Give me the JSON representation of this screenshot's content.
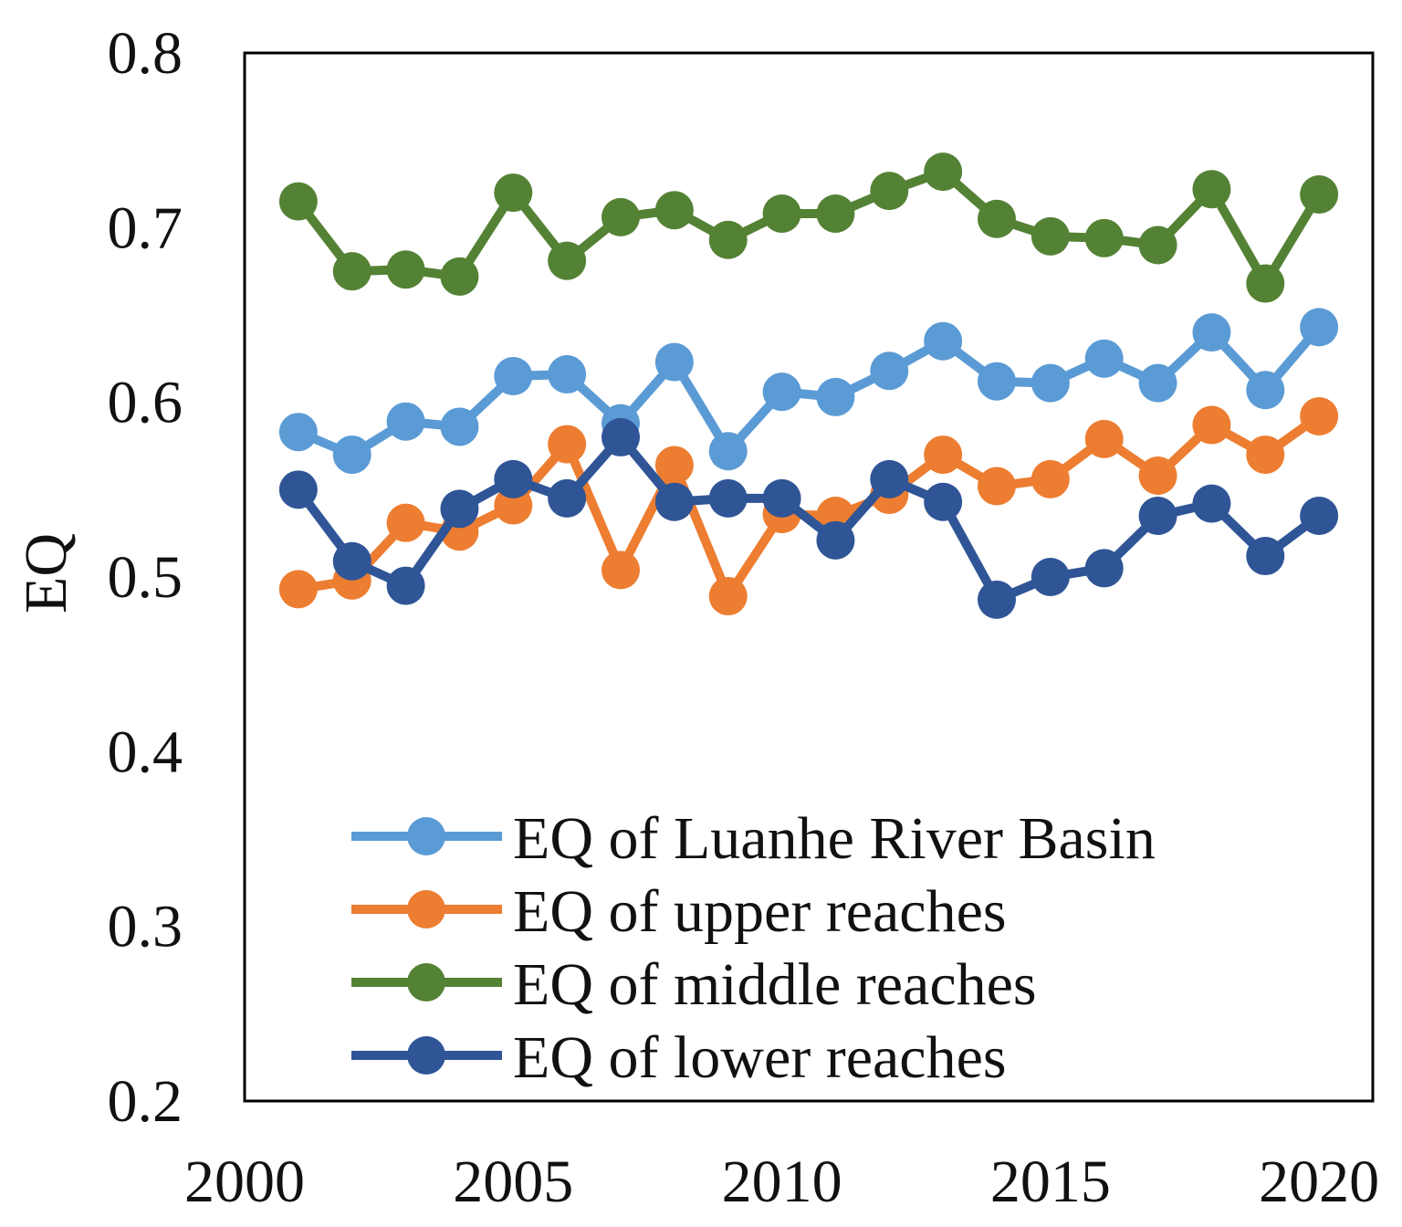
{
  "chart_data": {
    "type": "line",
    "title": "",
    "xlabel": "",
    "ylabel": "EQ",
    "xlim": [
      2000,
      2021
    ],
    "ylim": [
      0.2,
      0.8
    ],
    "x_ticks": [
      2000,
      2005,
      2010,
      2015,
      2020
    ],
    "y_ticks": [
      "0.2",
      "0.3",
      "0.4",
      "0.5",
      "0.6",
      "0.7",
      "0.8"
    ],
    "grid": false,
    "legend_position": "bottom-center",
    "x": [
      2001,
      2002,
      2003,
      2004,
      2005,
      2006,
      2007,
      2008,
      2009,
      2010,
      2011,
      2012,
      2013,
      2014,
      2015,
      2016,
      2017,
      2018,
      2019,
      2020
    ],
    "series": [
      {
        "name": "EQ of Luanhe River Basin",
        "color": "#5b9bd5",
        "values": [
          0.583,
          0.57,
          0.589,
          0.586,
          0.615,
          0.616,
          0.588,
          0.623,
          0.572,
          0.606,
          0.603,
          0.618,
          0.635,
          0.612,
          0.611,
          0.625,
          0.611,
          0.64,
          0.607,
          0.643
        ]
      },
      {
        "name": "EQ of upper reaches",
        "color": "#ed7d31",
        "values": [
          0.493,
          0.498,
          0.531,
          0.526,
          0.541,
          0.576,
          0.504,
          0.564,
          0.489,
          0.536,
          0.535,
          0.547,
          0.57,
          0.552,
          0.556,
          0.579,
          0.558,
          0.587,
          0.57,
          0.592
        ]
      },
      {
        "name": "EQ of middle reaches",
        "color": "#548235",
        "values": [
          0.715,
          0.675,
          0.676,
          0.672,
          0.72,
          0.681,
          0.706,
          0.71,
          0.693,
          0.708,
          0.708,
          0.721,
          0.732,
          0.705,
          0.695,
          0.694,
          0.69,
          0.722,
          0.668,
          0.719
        ]
      },
      {
        "name": "EQ of lower reaches",
        "color": "#2f5597",
        "values": [
          0.55,
          0.509,
          0.495,
          0.539,
          0.556,
          0.545,
          0.58,
          0.543,
          0.545,
          0.545,
          0.521,
          0.556,
          0.543,
          0.487,
          0.5,
          0.505,
          0.535,
          0.542,
          0.512,
          0.535
        ]
      }
    ]
  }
}
